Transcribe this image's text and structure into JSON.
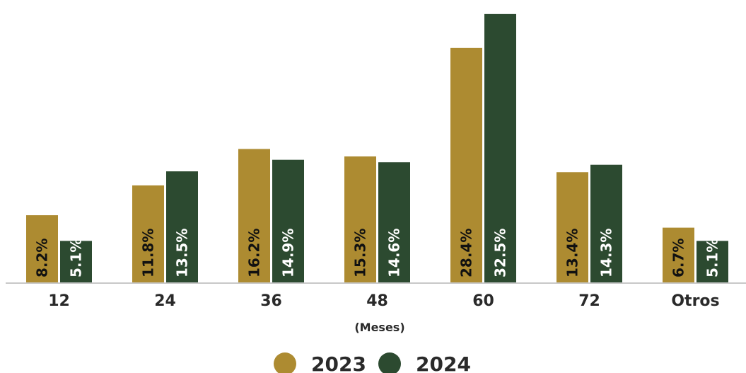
{
  "chart_data": {
    "type": "bar",
    "categories": [
      "12",
      "24",
      "36",
      "48",
      "60",
      "72",
      "Otros"
    ],
    "series": [
      {
        "name": "2023",
        "color": "#ad8b31",
        "label_color": "#111111",
        "values": [
          8.2,
          11.8,
          16.2,
          15.3,
          28.4,
          13.4,
          6.7
        ],
        "labels": [
          "8.2%",
          "11.8%",
          "16.2%",
          "15.3%",
          "28.4%",
          "13.4%",
          "6.7%"
        ]
      },
      {
        "name": "2024",
        "color": "#2c4a30",
        "label_color": "#ffffff",
        "values": [
          5.1,
          13.5,
          14.9,
          14.6,
          32.5,
          14.3,
          5.1
        ],
        "labels": [
          "5.1%",
          "13.5%",
          "14.9%",
          "14.6%",
          "32.5%",
          "14.3%",
          "5.1%"
        ]
      }
    ],
    "xlabel": "(Meses)",
    "ylim": [
      0,
      33
    ],
    "grid": false,
    "legend": "bottom-center",
    "axis_color": "#c8c8c8"
  }
}
